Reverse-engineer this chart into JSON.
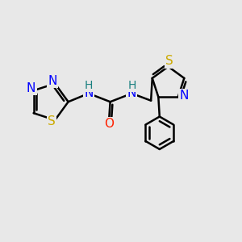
{
  "background_color": "#e8e8e8",
  "bond_color": "#000000",
  "bond_width": 1.8,
  "atom_colors": {
    "N": "#0000ff",
    "S": "#ccaa00",
    "O": "#ff2000",
    "C": "#000000",
    "H": "#1a8080"
  },
  "font_size": 10,
  "fig_width": 3.0,
  "fig_height": 3.0,
  "dpi": 100
}
